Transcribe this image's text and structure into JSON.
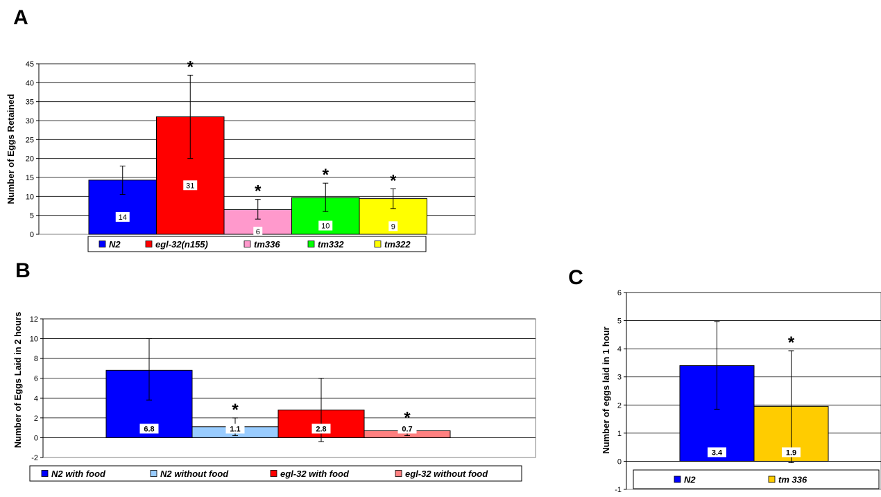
{
  "chart_data": [
    {
      "panel": "A",
      "type": "bar",
      "title": "",
      "xlabel": "",
      "ylabel": "Number of Eggs Retained",
      "ylim": [
        0,
        45
      ],
      "yticks": [
        0,
        5,
        10,
        15,
        20,
        25,
        30,
        35,
        40,
        45
      ],
      "grid": true,
      "legend_position": "bottom",
      "categories": [
        "N2",
        "egl-32(n155)",
        "tm336",
        "tm332",
        "tm322"
      ],
      "values": [
        14.3,
        31,
        6.5,
        9.7,
        9.4
      ],
      "value_labels": [
        "14",
        "31",
        "6",
        "10",
        "9"
      ],
      "errors_low": [
        10.5,
        20,
        4,
        6,
        6.8
      ],
      "errors_high": [
        18,
        42,
        9.2,
        13.5,
        12
      ],
      "colors": [
        "#0000ff",
        "#ff0000",
        "#ff99cc",
        "#00ff00",
        "#ffff00"
      ],
      "significant": [
        false,
        true,
        true,
        true,
        true
      ],
      "star_symbol": "*"
    },
    {
      "panel": "B",
      "type": "bar",
      "title": "",
      "xlabel": "",
      "ylabel": "Number of Eggs Laid in 2 hours",
      "ylim": [
        -2,
        12
      ],
      "yticks": [
        -2,
        0,
        2,
        4,
        6,
        8,
        10,
        12
      ],
      "grid": true,
      "legend_position": "bottom",
      "categories": [
        "N2 with food",
        "N2 without food",
        "egl-32 with food",
        "egl-32 without food"
      ],
      "values": [
        6.8,
        1.1,
        2.8,
        0.7
      ],
      "value_labels": [
        "6.8",
        "1.1",
        "2.8",
        "0.7"
      ],
      "errors_low": [
        3.8,
        0.2,
        -0.4,
        0.2
      ],
      "errors_high": [
        10,
        2.0,
        6.0,
        1.2
      ],
      "colors": [
        "#0000ff",
        "#99ccff",
        "#ff0000",
        "#ff8080"
      ],
      "significant": [
        false,
        true,
        false,
        true
      ],
      "star_symbol": "*"
    },
    {
      "panel": "C",
      "type": "bar",
      "title": "",
      "xlabel": "",
      "ylabel": "Number of eggs laid in 1 hour",
      "ylim": [
        -1,
        6
      ],
      "yticks": [
        -1,
        0,
        1,
        2,
        3,
        4,
        5,
        6
      ],
      "grid": true,
      "legend_position": "bottom",
      "categories": [
        "N2",
        "tm 336"
      ],
      "values": [
        3.4,
        1.95
      ],
      "value_labels": [
        "3.4",
        "1.9"
      ],
      "errors_low": [
        1.85,
        -0.05
      ],
      "errors_high": [
        4.97,
        3.93
      ],
      "colors": [
        "#0000ff",
        "#ffcc00"
      ],
      "significant": [
        false,
        true
      ],
      "star_symbol": "*"
    }
  ]
}
